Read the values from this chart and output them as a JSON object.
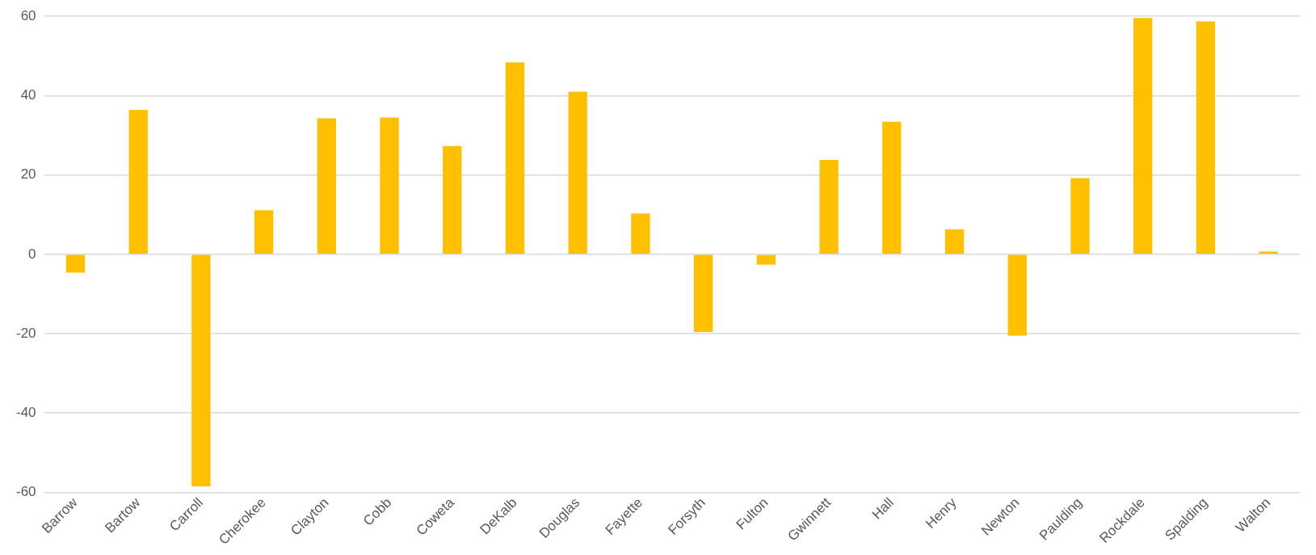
{
  "chart_data": {
    "type": "bar",
    "categories": [
      "Barrow",
      "Bartow",
      "Carroll",
      "Cherokee",
      "Clayton",
      "Cobb",
      "Coweta",
      "DeKalb",
      "Douglas",
      "Fayette",
      "Forsyth",
      "Fulton",
      "Gwinnett",
      "Hall",
      "Henry",
      "Newton",
      "Paulding",
      "Rockdale",
      "Spalding",
      "Walton"
    ],
    "values": [
      -4.6,
      36.4,
      -58.5,
      11.1,
      34.3,
      34.5,
      27.3,
      48.4,
      41.0,
      10.3,
      -19.6,
      -2.6,
      23.8,
      33.4,
      6.3,
      -20.5,
      19.2,
      59.6,
      58.7,
      0.7
    ],
    "color": "#ffc000",
    "ylim": [
      -60,
      60
    ],
    "yticks": [
      -60,
      -40,
      -20,
      0,
      20,
      40,
      60
    ],
    "grid": "y",
    "legend": false
  }
}
